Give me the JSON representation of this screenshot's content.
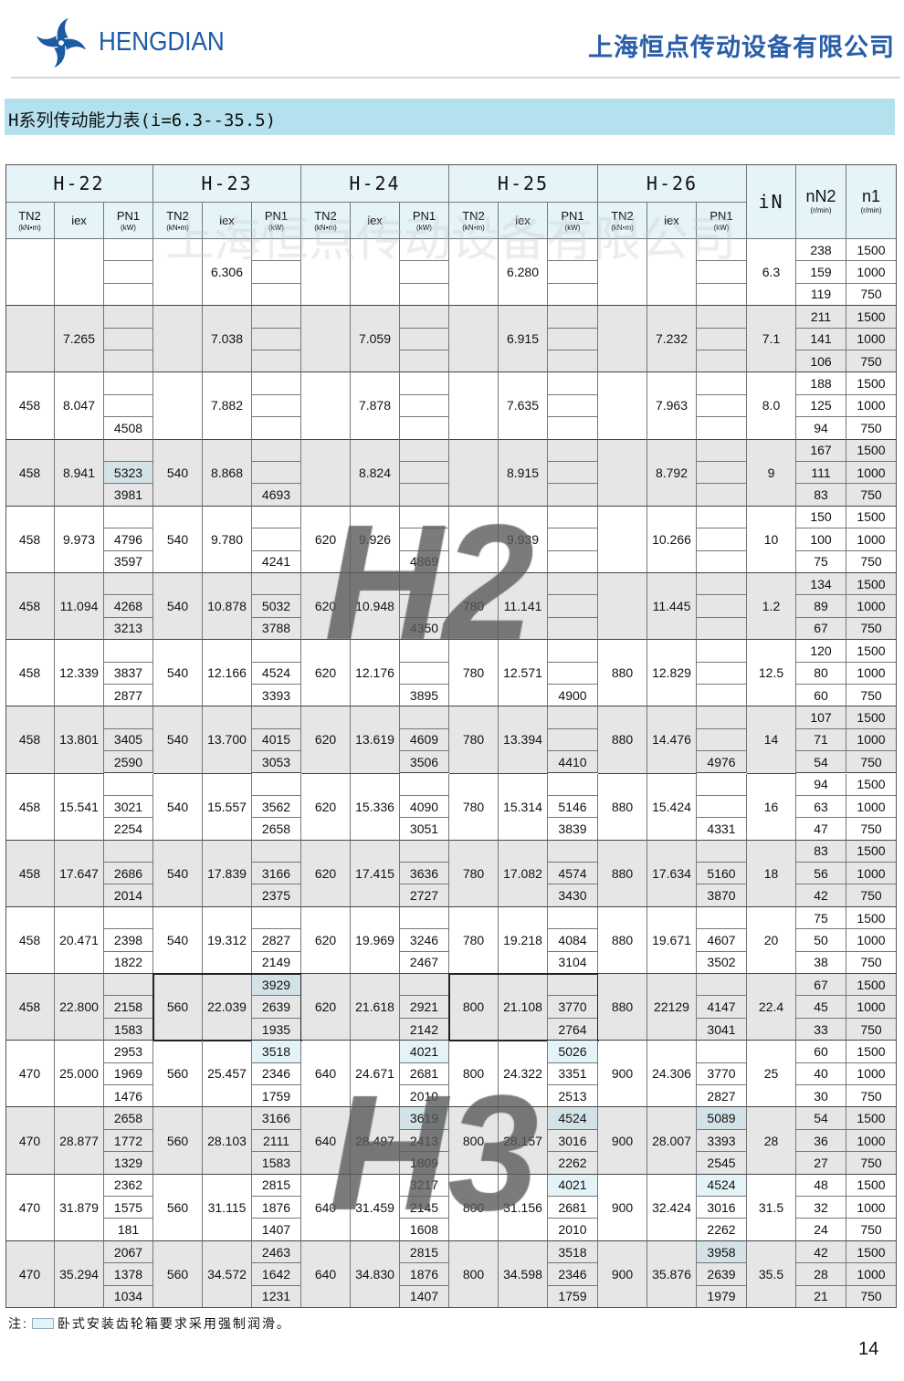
{
  "header": {
    "brand": "HENGDIAN",
    "company": "上海恒点传动设备有限公司",
    "logo_color": "#1d5aa6"
  },
  "title": "H系列传动能力表(i=6.3--35.5)",
  "watermarks": {
    "company": "上海恒点传动设备有限公司",
    "h2": "H2",
    "h3": "H3"
  },
  "table": {
    "models": [
      "H-22",
      "H-23",
      "H-24",
      "H-25",
      "H-26"
    ],
    "sub_headers": {
      "tn2": {
        "label": "TN2",
        "unit": "(kN•m)"
      },
      "iex": {
        "label": "iex"
      },
      "pn1": {
        "label": "PN1",
        "unit": "(kW)"
      }
    },
    "in_header": "iN",
    "nn2_header": {
      "label": "nN2",
      "unit": "(r/min)"
    },
    "n1_header": {
      "label": "n1",
      "unit": "(r/min)"
    },
    "colors": {
      "header_bg": "#e4f4f9",
      "gray_row": "#e6e6e6",
      "forced_lube": "#e3f3f8"
    },
    "rows": [
      {
        "iN": "6.3",
        "nN2": [
          "238",
          "159",
          "119"
        ],
        "n1": [
          "1500",
          "1000",
          "750"
        ],
        "m": [
          {
            "tn2": "",
            "iex": "",
            "pn1": [
              "",
              "",
              ""
            ]
          },
          {
            "tn2": "",
            "iex": "6.306",
            "pn1": [
              "",
              "",
              ""
            ]
          },
          {
            "tn2": "",
            "iex": "",
            "pn1": [
              "",
              "",
              ""
            ]
          },
          {
            "tn2": "",
            "iex": "6.280",
            "pn1": [
              "",
              "",
              ""
            ]
          },
          {
            "tn2": "",
            "iex": "",
            "pn1": [
              "",
              "",
              ""
            ]
          }
        ]
      },
      {
        "iN": "7.1",
        "nN2": [
          "211",
          "141",
          "106"
        ],
        "n1": [
          "1500",
          "1000",
          "750"
        ],
        "m": [
          {
            "tn2": "",
            "iex": "7.265",
            "pn1": [
              "",
              "",
              ""
            ]
          },
          {
            "tn2": "",
            "iex": "7.038",
            "pn1": [
              "",
              "",
              ""
            ]
          },
          {
            "tn2": "",
            "iex": "7.059",
            "pn1": [
              "",
              "",
              ""
            ]
          },
          {
            "tn2": "",
            "iex": "6.915",
            "pn1": [
              "",
              "",
              ""
            ]
          },
          {
            "tn2": "",
            "iex": "7.232",
            "pn1": [
              "",
              "",
              ""
            ]
          }
        ]
      },
      {
        "iN": "8.0",
        "nN2": [
          "188",
          "125",
          "94"
        ],
        "n1": [
          "1500",
          "1000",
          "750"
        ],
        "m": [
          {
            "tn2": "458",
            "iex": "8.047",
            "pn1": [
              "",
              "",
              "4508"
            ]
          },
          {
            "tn2": "",
            "iex": "7.882",
            "pn1": [
              "",
              "",
              ""
            ]
          },
          {
            "tn2": "",
            "iex": "7.878",
            "pn1": [
              "",
              "",
              ""
            ]
          },
          {
            "tn2": "",
            "iex": "7.635",
            "pn1": [
              "",
              "",
              ""
            ]
          },
          {
            "tn2": "",
            "iex": "7.963",
            "pn1": [
              "",
              "",
              ""
            ]
          }
        ]
      },
      {
        "iN": "9",
        "nN2": [
          "167",
          "111",
          "83"
        ],
        "n1": [
          "1500",
          "1000",
          "750"
        ],
        "m": [
          {
            "tn2": "458",
            "iex": "8.941",
            "pn1": [
              "",
              "5323",
              "3981"
            ],
            "hl": [
              1
            ]
          },
          {
            "tn2": "540",
            "iex": "8.868",
            "pn1": [
              "",
              "",
              "4693"
            ]
          },
          {
            "tn2": "",
            "iex": "8.824",
            "pn1": [
              "",
              "",
              ""
            ]
          },
          {
            "tn2": "",
            "iex": "8.915",
            "pn1": [
              "",
              "",
              ""
            ]
          },
          {
            "tn2": "",
            "iex": "8.792",
            "pn1": [
              "",
              "",
              ""
            ]
          }
        ]
      },
      {
        "iN": "10",
        "nN2": [
          "150",
          "100",
          "75"
        ],
        "n1": [
          "1500",
          "1000",
          "750"
        ],
        "m": [
          {
            "tn2": "458",
            "iex": "9.973",
            "pn1": [
              "",
              "4796",
              "3597"
            ]
          },
          {
            "tn2": "540",
            "iex": "9.780",
            "pn1": [
              "",
              "",
              "4241"
            ]
          },
          {
            "tn2": "620",
            "iex": "9.926",
            "pn1": [
              "",
              "",
              "4869"
            ]
          },
          {
            "tn2": "",
            "iex": "9.939",
            "pn1": [
              "",
              "",
              ""
            ]
          },
          {
            "tn2": "",
            "iex": "10.266",
            "pn1": [
              "",
              "",
              ""
            ]
          }
        ]
      },
      {
        "iN": "1.2",
        "nN2": [
          "134",
          "89",
          "67"
        ],
        "n1": [
          "1500",
          "1000",
          "750"
        ],
        "m": [
          {
            "tn2": "458",
            "iex": "11.094",
            "pn1": [
              "",
              "4268",
              "3213"
            ]
          },
          {
            "tn2": "540",
            "iex": "10.878",
            "pn1": [
              "",
              "5032",
              "3788"
            ]
          },
          {
            "tn2": "620",
            "iex": "10.948",
            "pn1": [
              "",
              "",
              "4350"
            ]
          },
          {
            "tn2": "780",
            "iex": "11.141",
            "pn1": [
              "",
              "",
              ""
            ]
          },
          {
            "tn2": "",
            "iex": "11.445",
            "pn1": [
              "",
              "",
              ""
            ]
          }
        ]
      },
      {
        "iN": "12.5",
        "nN2": [
          "120",
          "80",
          "60"
        ],
        "n1": [
          "1500",
          "1000",
          "750"
        ],
        "m": [
          {
            "tn2": "458",
            "iex": "12.339",
            "pn1": [
              "",
              "3837",
              "2877"
            ]
          },
          {
            "tn2": "540",
            "iex": "12.166",
            "pn1": [
              "",
              "4524",
              "3393"
            ]
          },
          {
            "tn2": "620",
            "iex": "12.176",
            "pn1": [
              "",
              "",
              "3895"
            ]
          },
          {
            "tn2": "780",
            "iex": "12.571",
            "pn1": [
              "",
              "",
              "4900"
            ]
          },
          {
            "tn2": "880",
            "iex": "12.829",
            "pn1": [
              "",
              "",
              ""
            ]
          }
        ]
      },
      {
        "iN": "14",
        "nN2": [
          "107",
          "71",
          "54"
        ],
        "n1": [
          "1500",
          "1000",
          "750"
        ],
        "m": [
          {
            "tn2": "458",
            "iex": "13.801",
            "pn1": [
              "",
              "3405",
              "2590"
            ]
          },
          {
            "tn2": "540",
            "iex": "13.700",
            "pn1": [
              "",
              "4015",
              "3053"
            ]
          },
          {
            "tn2": "620",
            "iex": "13.619",
            "pn1": [
              "",
              "4609",
              "3506"
            ]
          },
          {
            "tn2": "780",
            "iex": "13.394",
            "pn1": [
              "",
              "",
              "4410"
            ]
          },
          {
            "tn2": "880",
            "iex": "14.476",
            "pn1": [
              "",
              "",
              "4976"
            ]
          }
        ]
      },
      {
        "iN": "16",
        "nN2": [
          "94",
          "63",
          "47"
        ],
        "n1": [
          "1500",
          "1000",
          "750"
        ],
        "m": [
          {
            "tn2": "458",
            "iex": "15.541",
            "pn1": [
              "",
              "3021",
              "2254"
            ]
          },
          {
            "tn2": "540",
            "iex": "15.557",
            "pn1": [
              "",
              "3562",
              "2658"
            ]
          },
          {
            "tn2": "620",
            "iex": "15.336",
            "pn1": [
              "",
              "4090",
              "3051"
            ]
          },
          {
            "tn2": "780",
            "iex": "15.314",
            "pn1": [
              "",
              "5146",
              "3839"
            ]
          },
          {
            "tn2": "880",
            "iex": "15.424",
            "pn1": [
              "",
              "",
              "4331"
            ]
          }
        ]
      },
      {
        "iN": "18",
        "nN2": [
          "83",
          "56",
          "42"
        ],
        "n1": [
          "1500",
          "1000",
          "750"
        ],
        "m": [
          {
            "tn2": "458",
            "iex": "17.647",
            "pn1": [
              "",
              "2686",
              "2014"
            ]
          },
          {
            "tn2": "540",
            "iex": "17.839",
            "pn1": [
              "",
              "3166",
              "2375"
            ]
          },
          {
            "tn2": "620",
            "iex": "17.415",
            "pn1": [
              "",
              "3636",
              "2727"
            ]
          },
          {
            "tn2": "780",
            "iex": "17.082",
            "pn1": [
              "",
              "4574",
              "3430"
            ]
          },
          {
            "tn2": "880",
            "iex": "17.634",
            "pn1": [
              "",
              "5160",
              "3870"
            ]
          }
        ]
      },
      {
        "iN": "20",
        "nN2": [
          "75",
          "50",
          "38"
        ],
        "n1": [
          "1500",
          "1000",
          "750"
        ],
        "m": [
          {
            "tn2": "458",
            "iex": "20.471",
            "pn1": [
              "",
              "2398",
              "1822"
            ]
          },
          {
            "tn2": "540",
            "iex": "19.312",
            "pn1": [
              "",
              "2827",
              "2149"
            ]
          },
          {
            "tn2": "620",
            "iex": "19.969",
            "pn1": [
              "",
              "3246",
              "2467"
            ]
          },
          {
            "tn2": "780",
            "iex": "19.218",
            "pn1": [
              "",
              "4084",
              "3104"
            ]
          },
          {
            "tn2": "880",
            "iex": "19.671",
            "pn1": [
              "",
              "4607",
              "3502"
            ]
          }
        ]
      },
      {
        "iN": "22.4",
        "nN2": [
          "67",
          "45",
          "33"
        ],
        "n1": [
          "1500",
          "1000",
          "750"
        ],
        "m": [
          {
            "tn2": "458",
            "iex": "22.800",
            "pn1": [
              "",
              "2158",
              "1583"
            ]
          },
          {
            "tn2": "560",
            "iex": "22.039",
            "pn1": [
              "3929",
              "2639",
              "1935"
            ],
            "hl": [
              0
            ],
            "boxed": true
          },
          {
            "tn2": "620",
            "iex": "21.618",
            "pn1": [
              "",
              "2921",
              "2142"
            ]
          },
          {
            "tn2": "800",
            "iex": "21.108",
            "pn1": [
              "",
              "3770",
              "2764"
            ],
            "boxed": true
          },
          {
            "tn2": "880",
            "iex": "22129",
            "pn1": [
              "",
              "4147",
              "3041"
            ]
          }
        ]
      },
      {
        "iN": "25",
        "nN2": [
          "60",
          "40",
          "30"
        ],
        "n1": [
          "1500",
          "1000",
          "750"
        ],
        "m": [
          {
            "tn2": "470",
            "iex": "25.000",
            "pn1": [
              "2953",
              "1969",
              "1476"
            ]
          },
          {
            "tn2": "560",
            "iex": "25.457",
            "pn1": [
              "3518",
              "2346",
              "1759"
            ],
            "hl": [
              0
            ]
          },
          {
            "tn2": "640",
            "iex": "24.671",
            "pn1": [
              "4021",
              "2681",
              "2010"
            ],
            "hl": [
              0
            ]
          },
          {
            "tn2": "800",
            "iex": "24.322",
            "pn1": [
              "5026",
              "3351",
              "2513"
            ],
            "hl": [
              0
            ]
          },
          {
            "tn2": "900",
            "iex": "24.306",
            "pn1": [
              "",
              "3770",
              "2827"
            ]
          }
        ]
      },
      {
        "iN": "28",
        "nN2": [
          "54",
          "36",
          "27"
        ],
        "n1": [
          "1500",
          "1000",
          "750"
        ],
        "m": [
          {
            "tn2": "470",
            "iex": "28.877",
            "pn1": [
              "2658",
              "1772",
              "1329"
            ]
          },
          {
            "tn2": "560",
            "iex": "28.103",
            "pn1": [
              "3166",
              "2111",
              "1583"
            ]
          },
          {
            "tn2": "640",
            "iex": "28.497",
            "pn1": [
              "3619",
              "2413",
              "1809"
            ],
            "hl": [
              0
            ]
          },
          {
            "tn2": "800",
            "iex": "28.157",
            "pn1": [
              "4524",
              "3016",
              "2262"
            ],
            "hl": [
              0
            ]
          },
          {
            "tn2": "900",
            "iex": "28.007",
            "pn1": [
              "5089",
              "3393",
              "2545"
            ],
            "hl": [
              0
            ]
          }
        ]
      },
      {
        "iN": "31.5",
        "nN2": [
          "48",
          "32",
          "24"
        ],
        "n1": [
          "1500",
          "1000",
          "750"
        ],
        "m": [
          {
            "tn2": "470",
            "iex": "31.879",
            "pn1": [
              "2362",
              "1575",
              "181"
            ]
          },
          {
            "tn2": "560",
            "iex": "31.115",
            "pn1": [
              "2815",
              "1876",
              "1407"
            ]
          },
          {
            "tn2": "640",
            "iex": "31.459",
            "pn1": [
              "3217",
              "2145",
              "1608"
            ]
          },
          {
            "tn2": "800",
            "iex": "31.156",
            "pn1": [
              "4021",
              "2681",
              "2010"
            ],
            "hl": [
              0
            ]
          },
          {
            "tn2": "900",
            "iex": "32.424",
            "pn1": [
              "4524",
              "3016",
              "2262"
            ],
            "hl": [
              0
            ]
          }
        ]
      },
      {
        "iN": "35.5",
        "nN2": [
          "42",
          "28",
          "21"
        ],
        "n1": [
          "1500",
          "1000",
          "750"
        ],
        "m": [
          {
            "tn2": "470",
            "iex": "35.294",
            "pn1": [
              "2067",
              "1378",
              "1034"
            ]
          },
          {
            "tn2": "560",
            "iex": "34.572",
            "pn1": [
              "2463",
              "1642",
              "1231"
            ]
          },
          {
            "tn2": "640",
            "iex": "34.830",
            "pn1": [
              "2815",
              "1876",
              "1407"
            ]
          },
          {
            "tn2": "800",
            "iex": "34.598",
            "pn1": [
              "3518",
              "2346",
              "1759"
            ]
          },
          {
            "tn2": "900",
            "iex": "35.876",
            "pn1": [
              "3958",
              "2639",
              "1979"
            ],
            "hl": [
              0
            ]
          }
        ]
      }
    ]
  },
  "note": {
    "prefix": "注:",
    "text": "卧式安装齿轮箱要求采用强制润滑。"
  },
  "page_number": "14"
}
